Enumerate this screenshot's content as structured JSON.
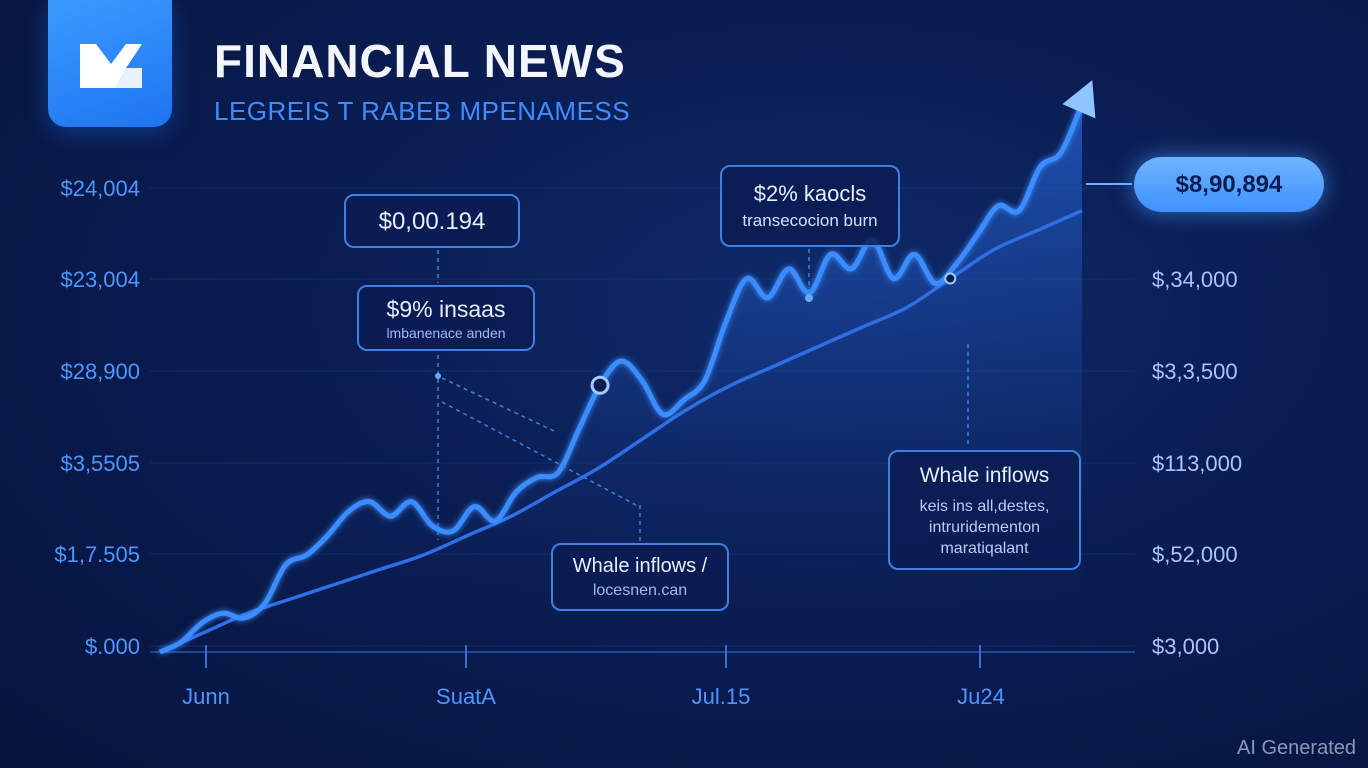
{
  "header": {
    "logo_text": "M",
    "title": "FINANCIAL NEWS",
    "subtitle": "LEGREIS T RABEB MPENAMESS"
  },
  "watermark": "AI Generated",
  "colors": {
    "background": "#0a1d52",
    "accent": "#3f92ff",
    "line_primary": "#3a8dff",
    "trend_line": "#2f6fe6"
  },
  "chart_data": {
    "type": "line",
    "title": "",
    "xlabel": "",
    "ylabel": "",
    "x_ticks": [
      "Junn",
      "SuatA",
      "Jul.15",
      "Ju24"
    ],
    "y_ticks_left": [
      "$24,004",
      "$23,004",
      "$28,900",
      "$3,5505",
      "$1,7.505",
      "$.000"
    ],
    "y_ticks_right": [
      "$,34,000",
      "$3,3,500",
      "$113,000",
      "$,52,000",
      "$3,000"
    ],
    "y_range_normalized": [
      0,
      1
    ],
    "series": [
      {
        "values": [
          0.0,
          0.02,
          0.06,
          0.08,
          0.07,
          0.1,
          0.18,
          0.2,
          0.24,
          0.29,
          0.31,
          0.28,
          0.31,
          0.26,
          0.25,
          0.3,
          0.27,
          0.33,
          0.36,
          0.37,
          0.46,
          0.55,
          0.6,
          0.56,
          0.49,
          0.52,
          0.56,
          0.68,
          0.77,
          0.73,
          0.79,
          0.74,
          0.82,
          0.79,
          0.85,
          0.77,
          0.82,
          0.76,
          0.8,
          0.86,
          0.92,
          0.91,
          1.0,
          1.03,
          1.13
        ]
      },
      {
        "values": [
          0.0,
          0.04,
          0.08,
          0.11,
          0.14,
          0.17,
          0.2,
          0.24,
          0.28,
          0.33,
          0.38,
          0.44,
          0.5,
          0.55,
          0.59,
          0.63,
          0.67,
          0.71,
          0.77,
          0.83,
          0.87,
          0.91
        ]
      }
    ],
    "annotations": [
      {
        "text": "$0,00.194",
        "sub": ""
      },
      {
        "text": "$9% insaas",
        "sub": "lmbanenace anden"
      },
      {
        "text": "$2% kaocls",
        "sub": "transecocion burn"
      },
      {
        "text": "Whale inflows /",
        "sub": "locesnen.can"
      },
      {
        "text": "Whale inflows",
        "sub": "keis ins all,destes, intruridementon maratiqalant"
      }
    ],
    "price_label": "$8,90,894",
    "grid": true
  }
}
